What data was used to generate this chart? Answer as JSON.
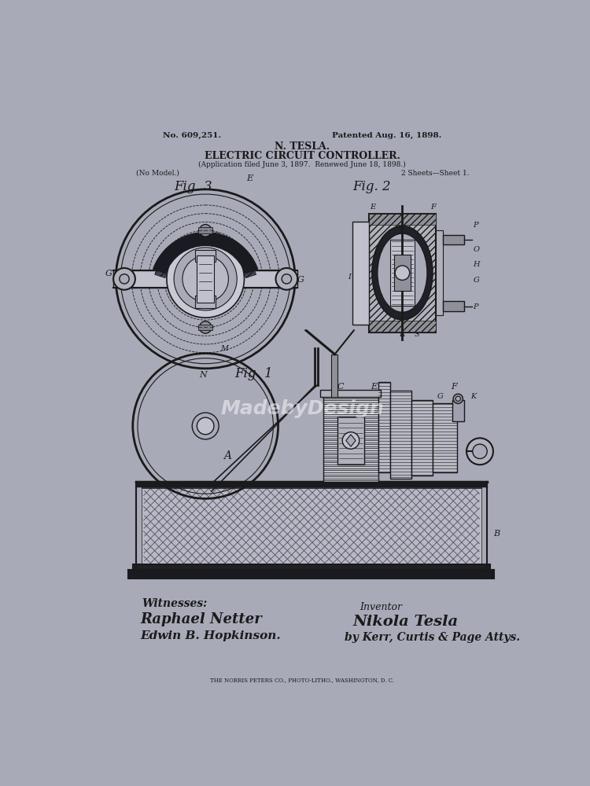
{
  "background_color": "#a8aab8",
  "line_color": "#1a1a1a",
  "title_line1": "No. 609,251.",
  "title_line2": "Patented Aug. 16, 1898.",
  "title_line3": "N. TESLA.",
  "title_line4": "ELECTRIC CIRCUIT CONTROLLER.",
  "title_line5": "(Application filed June 3, 1897.  Renewed June 18, 1898.)",
  "title_line6_left": "(No Model.)",
  "title_line6_right": "2 Sheets—Sheet 1.",
  "fig1_label": "Fig. 1",
  "fig2_label": "Fig. 2",
  "fig3_label": "Fig. 3",
  "watermark": "MadebyDesign",
  "witnesses_label": "Witnesses:",
  "witness1": "Raphael Netter",
  "witness2": "Edwin B. Hopkinson.",
  "inventor_label": "Inventor",
  "inventor_name": "Nikola Tesla",
  "attorney": "by Kerr, Curtis & Page Attys.",
  "printer": "THE NORRIS PETERS CO., PHOTO-LITHO., WASHINGTON, D. C."
}
